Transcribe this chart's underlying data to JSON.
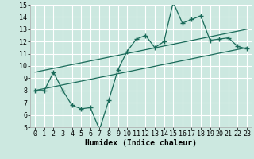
{
  "title": "",
  "xlabel": "Humidex (Indice chaleur)",
  "ylabel": "",
  "xlim": [
    -0.5,
    23.5
  ],
  "ylim": [
    5,
    15
  ],
  "xticks": [
    0,
    1,
    2,
    3,
    4,
    5,
    6,
    7,
    8,
    9,
    10,
    11,
    12,
    13,
    14,
    15,
    16,
    17,
    18,
    19,
    20,
    21,
    22,
    23
  ],
  "yticks": [
    5,
    6,
    7,
    8,
    9,
    10,
    11,
    12,
    13,
    14,
    15
  ],
  "bg_color": "#cce8e0",
  "grid_color": "#ffffff",
  "line_color": "#1a6b5a",
  "main_x": [
    0,
    1,
    2,
    3,
    4,
    5,
    6,
    7,
    8,
    9,
    10,
    11,
    12,
    13,
    14,
    15,
    16,
    17,
    18,
    19,
    20,
    21,
    22,
    23
  ],
  "main_y": [
    8,
    8,
    9.5,
    8,
    6.8,
    6.5,
    6.6,
    4.8,
    7.2,
    9.7,
    11.2,
    12.2,
    12.5,
    11.5,
    12,
    15.2,
    13.5,
    13.8,
    14.1,
    12.1,
    12.2,
    12.3,
    11.6,
    11.4
  ],
  "upper_line_x": [
    0,
    23
  ],
  "upper_line_y": [
    9.5,
    13.0
  ],
  "lower_line_x": [
    0,
    23
  ],
  "lower_line_y": [
    8.0,
    11.5
  ],
  "marker_size": 4,
  "line_width": 0.9,
  "font_size": 6
}
